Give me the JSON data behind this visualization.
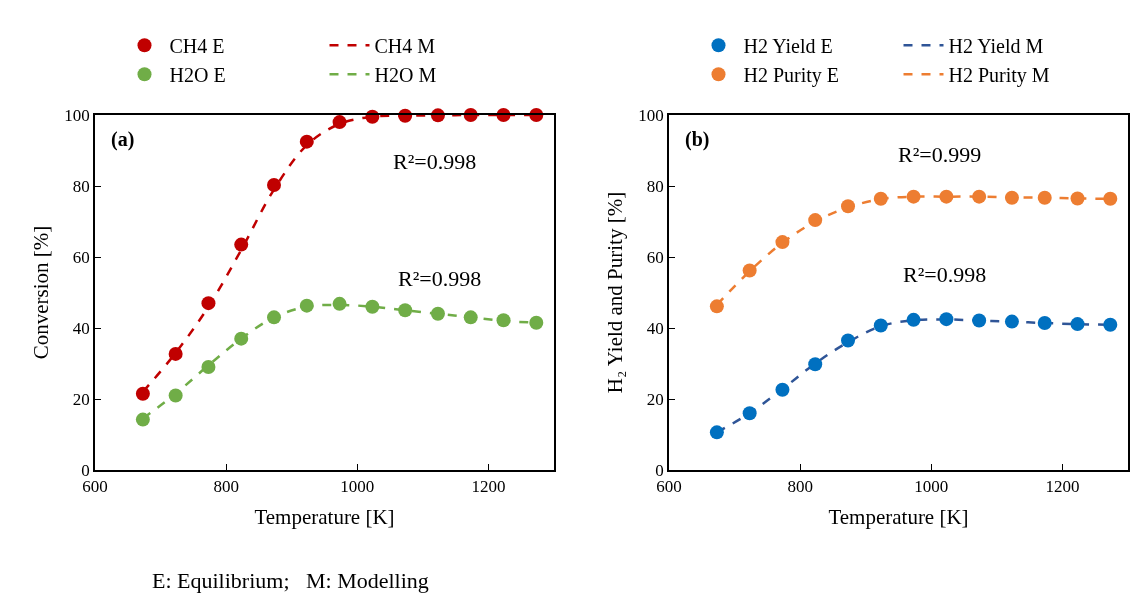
{
  "chart_data": [
    {
      "type": "line",
      "xlabel": "Temperature [K]",
      "ylabel": "Conversion [%]",
      "x": [
        673,
        723,
        773,
        823,
        873,
        923,
        973,
        1023,
        1073,
        1123,
        1173,
        1223,
        1273
      ],
      "series": [
        {
          "name": "CH4 E",
          "type": "scatter",
          "marker": "circle",
          "color": "#c00000",
          "values": [
            21.5,
            32.7,
            47,
            63.5,
            80.3,
            92.5,
            98,
            99.5,
            99.8,
            99.9,
            100,
            100,
            100
          ]
        },
        {
          "name": "CH4 M",
          "line_style": "dashed",
          "color": "#c00000",
          "values": [
            22,
            33,
            46,
            62,
            79,
            91.5,
            97.5,
            99.5,
            99.8,
            99.9,
            100,
            100,
            100
          ]
        },
        {
          "name": "H2O E",
          "type": "scatter",
          "marker": "circle",
          "color": "#70ad47",
          "values": [
            14.2,
            21,
            29,
            37,
            43,
            46.3,
            46.8,
            46,
            45,
            44,
            43,
            42.2,
            41.5
          ]
        },
        {
          "name": "H2O M",
          "line_style": "dashed",
          "color": "#70ad47",
          "values": [
            14.5,
            21.5,
            29.5,
            37,
            43,
            46,
            46.5,
            46,
            45,
            44,
            43,
            42,
            41.5
          ]
        }
      ],
      "xlim": [
        600,
        1300
      ],
      "xticks": [
        600,
        800,
        1000,
        1200
      ],
      "ylim": [
        0,
        100
      ],
      "yticks": [
        0,
        20,
        40,
        60,
        80,
        100
      ],
      "grid": false,
      "legend": "top",
      "annotations": [
        "(a)",
        "R²=0.998",
        "R²=0.998",
        "E: Equilibrium;   M: Modelling"
      ]
    },
    {
      "type": "line",
      "xlabel": "Temperature [K]",
      "ylabel": "H₂ Yield and Purity [%]",
      "x": [
        673,
        723,
        773,
        823,
        873,
        923,
        973,
        1023,
        1073,
        1123,
        1173,
        1223,
        1273
      ],
      "series": [
        {
          "name": "H2 Yield E",
          "type": "scatter",
          "marker": "circle",
          "color": "#0070c0",
          "values": [
            10.6,
            16,
            22.6,
            29.8,
            36.5,
            40.7,
            42.3,
            42.5,
            42.1,
            41.8,
            41.4,
            41.1,
            40.9
          ]
        },
        {
          "name": "H2 Yield M",
          "line_style": "dashed",
          "color": "#2f5597",
          "values": [
            10.6,
            16,
            22.8,
            30,
            36,
            40.5,
            42.2,
            42.4,
            42.1,
            41.8,
            41.4,
            41.1,
            40.9
          ]
        },
        {
          "name": "H2 Purity E",
          "type": "scatter",
          "marker": "circle",
          "color": "#ed7d31",
          "values": [
            46.1,
            56.2,
            64.2,
            70.4,
            74.3,
            76.4,
            77,
            77,
            77,
            76.7,
            76.7,
            76.5,
            76.4
          ]
        },
        {
          "name": "H2 Purity M",
          "line_style": "dashed",
          "color": "#ed7d31",
          "values": [
            46.5,
            56,
            64,
            70,
            74,
            76.3,
            77,
            77,
            77,
            76.8,
            76.7,
            76.5,
            76.4
          ]
        }
      ],
      "xlim": [
        600,
        1300
      ],
      "xticks": [
        600,
        800,
        1000,
        1200
      ],
      "ylim": [
        0,
        100
      ],
      "yticks": [
        0,
        20,
        40,
        60,
        80,
        100
      ],
      "grid": false,
      "legend": "top",
      "annotations": [
        "(b)",
        "R²=0.999",
        "R²=0.998"
      ]
    }
  ]
}
